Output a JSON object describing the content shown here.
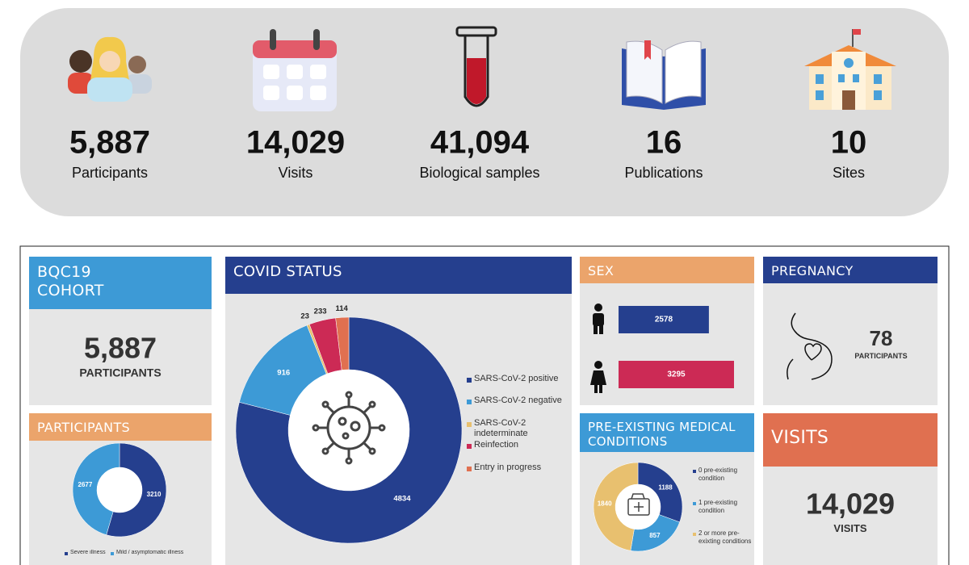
{
  "banner": {
    "items": [
      {
        "value": "5,887",
        "label": "Participants"
      },
      {
        "value": "14,029",
        "label": "Visits"
      },
      {
        "value": "41,094",
        "label": "Biological samples"
      },
      {
        "value": "16",
        "label": "Publications"
      },
      {
        "value": "10",
        "label": "Sites"
      }
    ]
  },
  "panels": {
    "cohort": {
      "title": "BQC19 COHORT",
      "value": "5,887",
      "label": "PARTICIPANTS"
    },
    "pregnancy": {
      "title": "PREGNANCY",
      "value": "78",
      "label": "PARTICIPANTS"
    },
    "visits": {
      "title": "VISITS",
      "value": "14,029",
      "label": "VISITS"
    }
  },
  "chart_data": [
    {
      "type": "donut",
      "title": "COVID STATUS",
      "categories": [
        "SARS-CoV-2 positive",
        "SARS-CoV-2 negative",
        "SARS-CoV-2 indeterminate",
        "Reinfection",
        "Entry in progress"
      ],
      "values": [
        4834,
        916,
        23,
        233,
        114
      ],
      "colors": [
        "#253f8e",
        "#3d9ad6",
        "#e8c06f",
        "#cc2a55",
        "#e07050"
      ]
    },
    {
      "type": "donut",
      "title": "PARTICIPANTS",
      "categories": [
        "Severe illness",
        "Mild / asymptomatic illness"
      ],
      "values": [
        3210,
        2677
      ],
      "colors": [
        "#253f8e",
        "#3d9ad6"
      ]
    },
    {
      "type": "hbar",
      "title": "SEX",
      "categories": [
        null,
        null
      ],
      "values": [
        2578,
        3295
      ],
      "colors": [
        "#253f8e",
        "#cc2a55"
      ]
    },
    {
      "type": "donut",
      "title": "PRE-EXISTING MEDICAL CONDITIONS",
      "categories": [
        "0 pre-existing condition",
        "1 pre-existing condition",
        "2 or more pre-exixting conditions"
      ],
      "values": [
        1188,
        857,
        1840
      ],
      "colors": [
        "#253f8e",
        "#3d9ad6",
        "#e8c06f"
      ]
    }
  ]
}
